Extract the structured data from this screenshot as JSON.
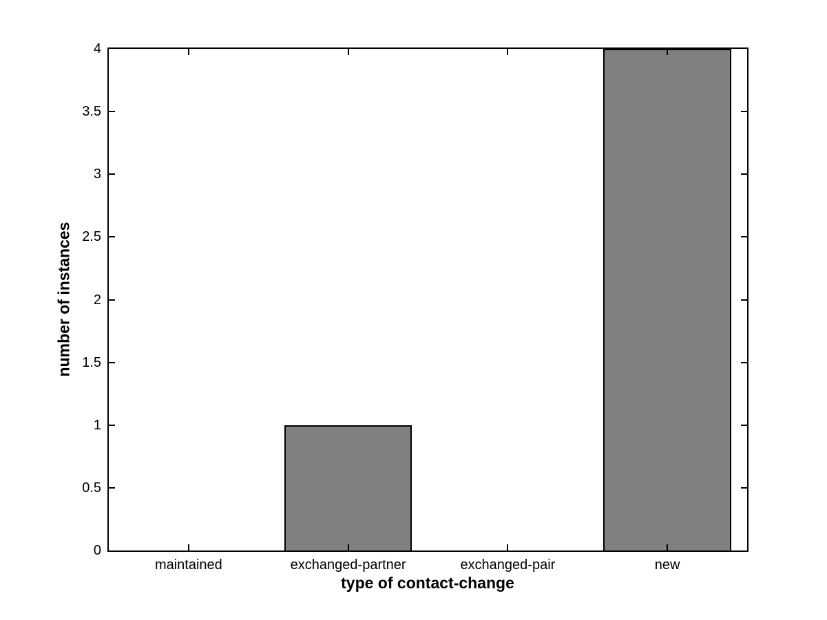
{
  "figure": {
    "background": "#ffffff"
  },
  "chart_data": {
    "type": "bar",
    "categories": [
      "maintained",
      "exchanged-partner",
      "exchanged-pair",
      "new"
    ],
    "values": [
      0,
      1,
      0,
      4
    ],
    "title": "",
    "xlabel": "type of contact-change",
    "ylabel": "number of instances",
    "ylim": [
      0,
      4
    ],
    "yticks": [
      0,
      0.5,
      1,
      1.5,
      2,
      2.5,
      3,
      3.5,
      4
    ],
    "ytick_labels": [
      "0",
      "0.5",
      "1",
      "1.5",
      "2",
      "2.5",
      "3",
      "3.5",
      "4"
    ],
    "bar_width_fraction": 0.8,
    "grid": false,
    "legend": "none",
    "box": true,
    "tick_direction": "in",
    "axis_color": "#000000",
    "bar_fill": "#808080",
    "bar_edge": "#000000"
  }
}
